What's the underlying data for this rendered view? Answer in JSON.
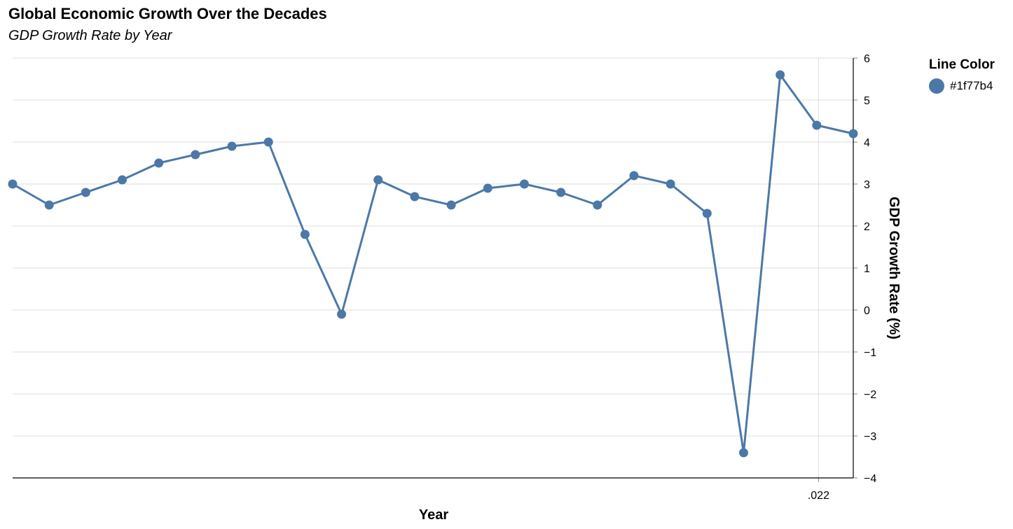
{
  "chart_data": {
    "type": "line",
    "title": "Global Economic Growth Over the Decades",
    "subtitle": "GDP Growth Rate by Year",
    "xlabel": "Year",
    "ylabel": "GDP Growth Rate (%)",
    "x_tick_labels": [
      ".022"
    ],
    "y_ticks": [
      6,
      5,
      4,
      3,
      2,
      1,
      0,
      -1,
      -2,
      -3,
      -4
    ],
    "y_tick_labels": [
      "6",
      "5",
      "4",
      "3",
      "2",
      "1",
      "0",
      "−1",
      "−2",
      "−3",
      "−4"
    ],
    "ylim": [
      -4,
      6
    ],
    "y_axis_side": "right",
    "grid": true,
    "legend": {
      "title": "Line Color",
      "entries": [
        "#1f77b4"
      ],
      "placement": "right"
    },
    "series": [
      {
        "name": "#1f77b4",
        "color": "#4c78a8",
        "values": [
          3.0,
          2.5,
          2.8,
          3.1,
          3.5,
          3.7,
          3.9,
          4.0,
          1.8,
          -0.1,
          3.1,
          2.7,
          2.5,
          2.9,
          3.0,
          2.8,
          2.5,
          3.2,
          3.0,
          2.3,
          -3.4,
          5.6,
          4.4,
          4.2
        ]
      }
    ]
  }
}
